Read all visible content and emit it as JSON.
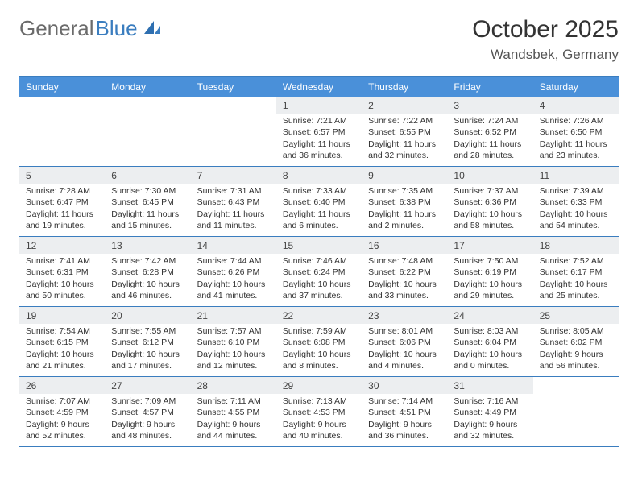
{
  "logo": {
    "text1": "General",
    "text2": "Blue"
  },
  "title": "October 2025",
  "location": "Wandsbek, Germany",
  "colors": {
    "header_bg": "#4a90d9",
    "border": "#3a7dbf",
    "daynum_bg": "#eceef0",
    "text": "#333333",
    "logo_gray": "#6b6b6b",
    "logo_blue": "#3a7dbf"
  },
  "dayNames": [
    "Sunday",
    "Monday",
    "Tuesday",
    "Wednesday",
    "Thursday",
    "Friday",
    "Saturday"
  ],
  "weeks": [
    [
      null,
      null,
      null,
      {
        "n": "1",
        "r": "7:21 AM",
        "s": "6:57 PM",
        "d": "11 hours and 36 minutes."
      },
      {
        "n": "2",
        "r": "7:22 AM",
        "s": "6:55 PM",
        "d": "11 hours and 32 minutes."
      },
      {
        "n": "3",
        "r": "7:24 AM",
        "s": "6:52 PM",
        "d": "11 hours and 28 minutes."
      },
      {
        "n": "4",
        "r": "7:26 AM",
        "s": "6:50 PM",
        "d": "11 hours and 23 minutes."
      }
    ],
    [
      {
        "n": "5",
        "r": "7:28 AM",
        "s": "6:47 PM",
        "d": "11 hours and 19 minutes."
      },
      {
        "n": "6",
        "r": "7:30 AM",
        "s": "6:45 PM",
        "d": "11 hours and 15 minutes."
      },
      {
        "n": "7",
        "r": "7:31 AM",
        "s": "6:43 PM",
        "d": "11 hours and 11 minutes."
      },
      {
        "n": "8",
        "r": "7:33 AM",
        "s": "6:40 PM",
        "d": "11 hours and 6 minutes."
      },
      {
        "n": "9",
        "r": "7:35 AM",
        "s": "6:38 PM",
        "d": "11 hours and 2 minutes."
      },
      {
        "n": "10",
        "r": "7:37 AM",
        "s": "6:36 PM",
        "d": "10 hours and 58 minutes."
      },
      {
        "n": "11",
        "r": "7:39 AM",
        "s": "6:33 PM",
        "d": "10 hours and 54 minutes."
      }
    ],
    [
      {
        "n": "12",
        "r": "7:41 AM",
        "s": "6:31 PM",
        "d": "10 hours and 50 minutes."
      },
      {
        "n": "13",
        "r": "7:42 AM",
        "s": "6:28 PM",
        "d": "10 hours and 46 minutes."
      },
      {
        "n": "14",
        "r": "7:44 AM",
        "s": "6:26 PM",
        "d": "10 hours and 41 minutes."
      },
      {
        "n": "15",
        "r": "7:46 AM",
        "s": "6:24 PM",
        "d": "10 hours and 37 minutes."
      },
      {
        "n": "16",
        "r": "7:48 AM",
        "s": "6:22 PM",
        "d": "10 hours and 33 minutes."
      },
      {
        "n": "17",
        "r": "7:50 AM",
        "s": "6:19 PM",
        "d": "10 hours and 29 minutes."
      },
      {
        "n": "18",
        "r": "7:52 AM",
        "s": "6:17 PM",
        "d": "10 hours and 25 minutes."
      }
    ],
    [
      {
        "n": "19",
        "r": "7:54 AM",
        "s": "6:15 PM",
        "d": "10 hours and 21 minutes."
      },
      {
        "n": "20",
        "r": "7:55 AM",
        "s": "6:12 PM",
        "d": "10 hours and 17 minutes."
      },
      {
        "n": "21",
        "r": "7:57 AM",
        "s": "6:10 PM",
        "d": "10 hours and 12 minutes."
      },
      {
        "n": "22",
        "r": "7:59 AM",
        "s": "6:08 PM",
        "d": "10 hours and 8 minutes."
      },
      {
        "n": "23",
        "r": "8:01 AM",
        "s": "6:06 PM",
        "d": "10 hours and 4 minutes."
      },
      {
        "n": "24",
        "r": "8:03 AM",
        "s": "6:04 PM",
        "d": "10 hours and 0 minutes."
      },
      {
        "n": "25",
        "r": "8:05 AM",
        "s": "6:02 PM",
        "d": "9 hours and 56 minutes."
      }
    ],
    [
      {
        "n": "26",
        "r": "7:07 AM",
        "s": "4:59 PM",
        "d": "9 hours and 52 minutes."
      },
      {
        "n": "27",
        "r": "7:09 AM",
        "s": "4:57 PM",
        "d": "9 hours and 48 minutes."
      },
      {
        "n": "28",
        "r": "7:11 AM",
        "s": "4:55 PM",
        "d": "9 hours and 44 minutes."
      },
      {
        "n": "29",
        "r": "7:13 AM",
        "s": "4:53 PM",
        "d": "9 hours and 40 minutes."
      },
      {
        "n": "30",
        "r": "7:14 AM",
        "s": "4:51 PM",
        "d": "9 hours and 36 minutes."
      },
      {
        "n": "31",
        "r": "7:16 AM",
        "s": "4:49 PM",
        "d": "9 hours and 32 minutes."
      },
      null
    ]
  ],
  "labels": {
    "sunrise": "Sunrise:",
    "sunset": "Sunset:",
    "daylight": "Daylight:"
  }
}
